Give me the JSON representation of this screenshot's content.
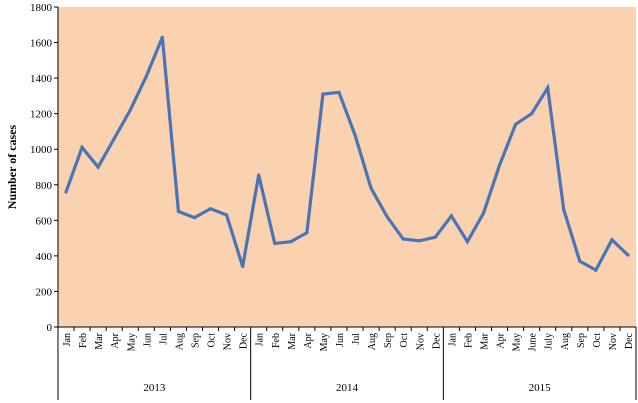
{
  "chart_data": {
    "type": "line",
    "title": "",
    "xlabel": "",
    "ylabel": "Number of cases",
    "ylim": [
      0,
      1800
    ],
    "yticks": [
      0,
      200,
      400,
      600,
      800,
      1000,
      1200,
      1400,
      1600,
      1800
    ],
    "grid": false,
    "colors": {
      "plot_background": "#fad2b0",
      "line": "#4a74b4"
    },
    "years": [
      {
        "label": "2013",
        "months": [
          "Jan",
          "Feb",
          "Mar",
          "Apr",
          "May",
          "Jun",
          "Jul",
          "Aug",
          "Sep",
          "Oct",
          "Nov",
          "Dec"
        ]
      },
      {
        "label": "2014",
        "months": [
          "Jan",
          "Feb",
          "Mar",
          "Apr",
          "May",
          "Jun",
          "Jul",
          "Aug",
          "Sep",
          "Oct",
          "Nov",
          "Dec"
        ]
      },
      {
        "label": "2015",
        "months": [
          "Jan",
          "Feb",
          "Mar",
          "Apr",
          "May",
          "June",
          "July",
          "Aug",
          "Sep",
          "Oct",
          "Nov",
          "Dec"
        ]
      }
    ],
    "series": [
      {
        "values": [
          760,
          1010,
          900,
          1060,
          1220,
          1410,
          1630,
          650,
          615,
          665,
          630,
          340,
          855,
          470,
          480,
          530,
          1310,
          1320,
          1080,
          780,
          620,
          495,
          485,
          505,
          625,
          480,
          640,
          910,
          1140,
          1200,
          1345,
          660,
          370,
          320,
          490,
          405
        ]
      }
    ]
  }
}
